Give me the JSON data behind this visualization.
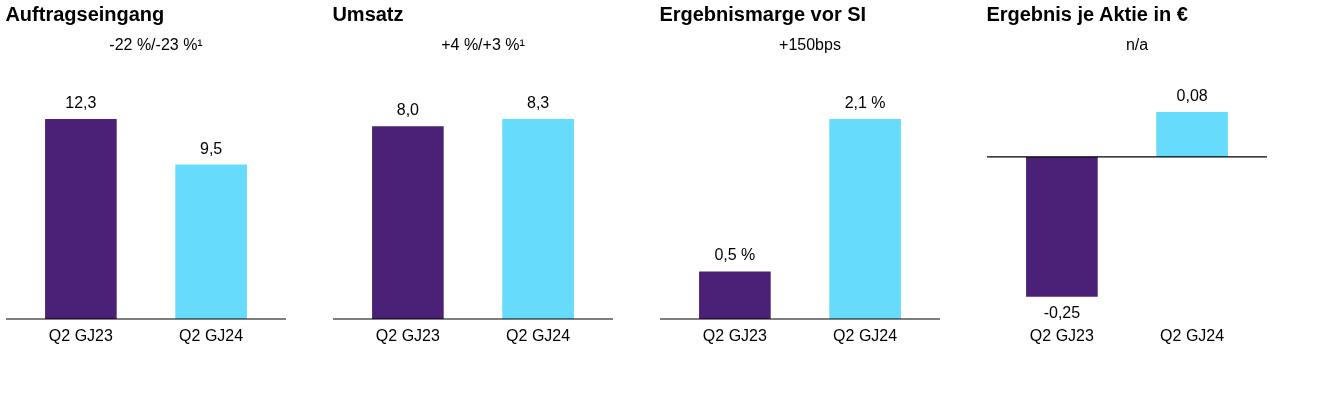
{
  "chart_data": [
    {
      "type": "bar",
      "title": "Auftragseingang",
      "categories": [
        "Q2 GJ23",
        "Q2 GJ24"
      ],
      "values": [
        12.3,
        9.5
      ],
      "colors": [
        "#4b2077",
        "#66dbfb"
      ],
      "value_labels": [
        "12,3",
        "9,5"
      ],
      "annotations": [
        "-22 %/-23 %¹"
      ]
    },
    {
      "type": "bar",
      "title": "Umsatz",
      "categories": [
        "Q2 GJ23",
        "Q2 GJ24"
      ],
      "values": [
        8.0,
        8.3
      ],
      "colors": [
        "#4b2077",
        "#66dbfb"
      ],
      "value_labels": [
        "8,0",
        "8,3"
      ],
      "annotations": [
        "+4 %/+3 %¹"
      ]
    },
    {
      "type": "bar",
      "title": "Ergebnismarge vor SI",
      "categories": [
        "Q2 GJ23",
        "Q2 GJ24"
      ],
      "values": [
        0.5,
        2.1
      ],
      "colors": [
        "#4b2077",
        "#66dbfb"
      ],
      "value_labels": [
        "0,5 %",
        "2,1 %"
      ],
      "annotations": [
        "+150bps"
      ]
    },
    {
      "type": "bar",
      "title": "Ergebnis je Aktie in €",
      "categories": [
        "Q2 GJ23",
        "Q2 GJ24"
      ],
      "values": [
        -0.25,
        0.08
      ],
      "colors": [
        "#4b2077",
        "#66dbfb"
      ],
      "value_labels": [
        "-0,25",
        "0,08"
      ],
      "annotations": [
        "n/a"
      ]
    }
  ]
}
